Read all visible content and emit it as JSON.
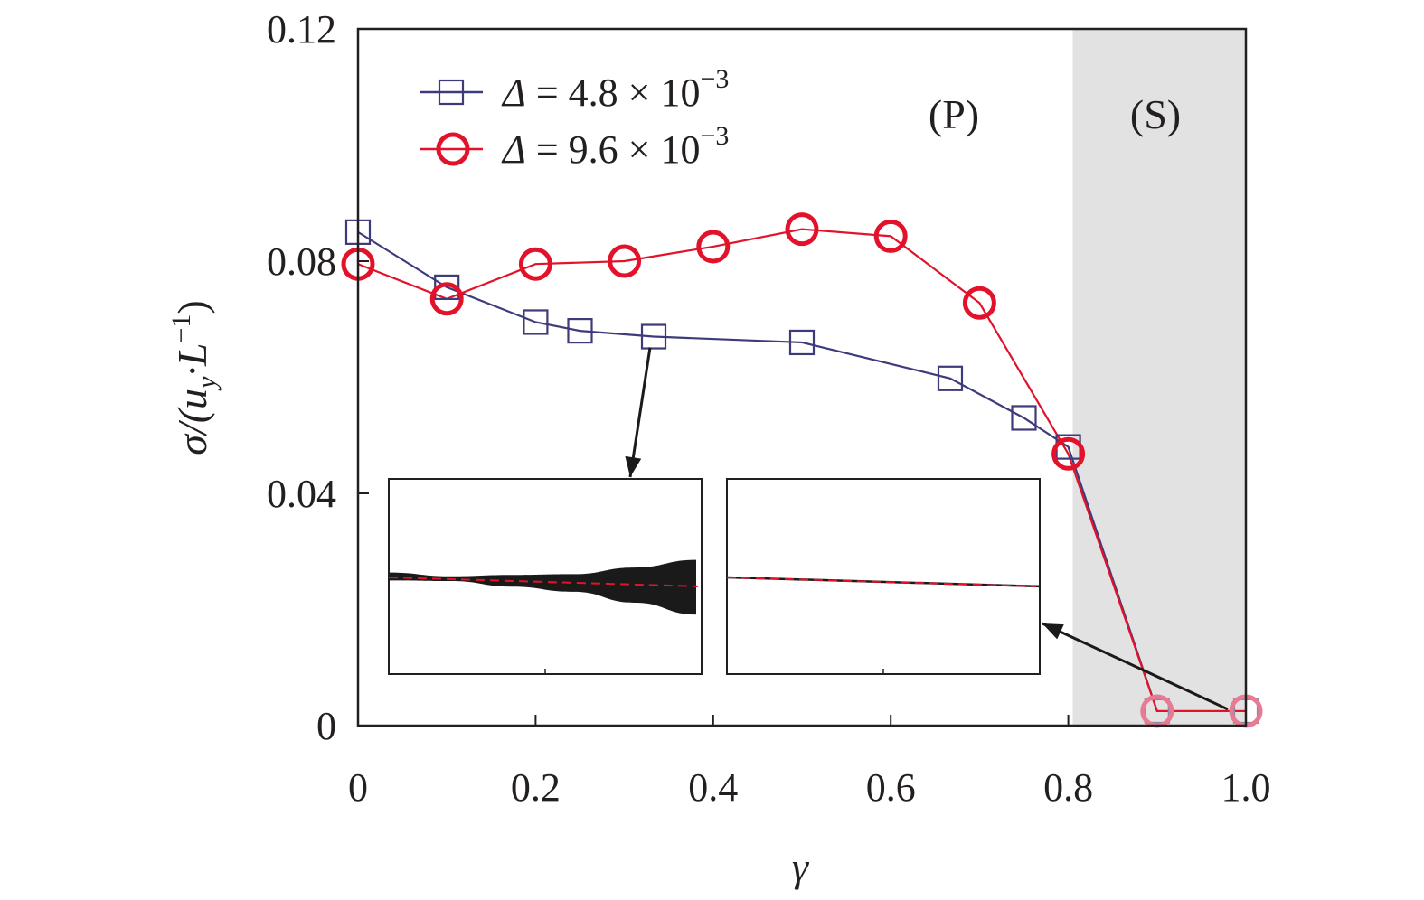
{
  "chart_data": {
    "type": "line",
    "xlabel": "γ",
    "ylabel": "σ/(u_y·L⁻¹)",
    "ylabel_parts": {
      "main": "σ/(u",
      "sub": "y",
      "mid": "·L",
      "sup": "−1",
      "end": ")"
    },
    "xlim": [
      0,
      1.0
    ],
    "ylim": [
      0,
      0.12
    ],
    "x_ticks": [
      0,
      0.2,
      0.4,
      0.6,
      0.8,
      1.0
    ],
    "x_tick_labels": [
      "0",
      "0.2",
      "0.4",
      "0.6",
      "0.8",
      "1.0"
    ],
    "y_ticks": [
      0,
      0.04,
      0.08,
      0.12
    ],
    "y_tick_labels": [
      "0",
      "0.04",
      "0.08",
      "0.12"
    ],
    "grid": false,
    "legend_position": "top-left",
    "regions": [
      {
        "label": "(P)",
        "x_range": [
          0,
          0.805
        ],
        "shaded": false
      },
      {
        "label": "(S)",
        "x_range": [
          0.805,
          1.0
        ],
        "shaded": true,
        "color": "#e2e2e2"
      }
    ],
    "series": [
      {
        "legend_symbol": "Δ",
        "legend_value": " = 4.8 × 10",
        "legend_exponent": "−3",
        "marker": "square",
        "color": "#3d3b7a",
        "x": [
          0,
          0.1,
          0.2,
          0.25,
          0.333,
          0.5,
          0.667,
          0.75,
          0.8,
          0.9,
          1.0
        ],
        "y": [
          0.085,
          0.0755,
          0.0695,
          0.068,
          0.067,
          0.066,
          0.0598,
          0.053,
          0.048,
          0.0025,
          0.0025
        ]
      },
      {
        "legend_symbol": "Δ",
        "legend_value": " = 9.6 × 10",
        "legend_exponent": "−3",
        "marker": "circle",
        "color": "#e3122b",
        "x": [
          0,
          0.1,
          0.2,
          0.3,
          0.4,
          0.5,
          0.6,
          0.7,
          0.8,
          0.9,
          1.0
        ],
        "y": [
          0.0795,
          0.0735,
          0.0795,
          0.08,
          0.0825,
          0.0855,
          0.0843,
          0.0728,
          0.0468,
          0.0025,
          0.0025
        ]
      }
    ],
    "insets": [
      {
        "name": "inset-oscillating",
        "points_to": {
          "x": 0.333,
          "y": 0.067
        },
        "center": 0.5,
        "envelope": [
          0.02,
          0.012,
          0.03,
          0.045,
          0.09,
          0.14
        ]
      },
      {
        "name": "inset-steady",
        "points_to": {
          "x": 1.0,
          "y": 0.0025
        },
        "center": 0.5,
        "envelope": [
          0,
          0,
          0,
          0,
          0,
          0
        ]
      }
    ],
    "colors": {
      "axis": "#231f20",
      "shade": "#e2e2e2",
      "arrow": "#1a1a1a",
      "inset_fill": "#1a1a1a",
      "inset_dash": "#e3122b"
    }
  }
}
